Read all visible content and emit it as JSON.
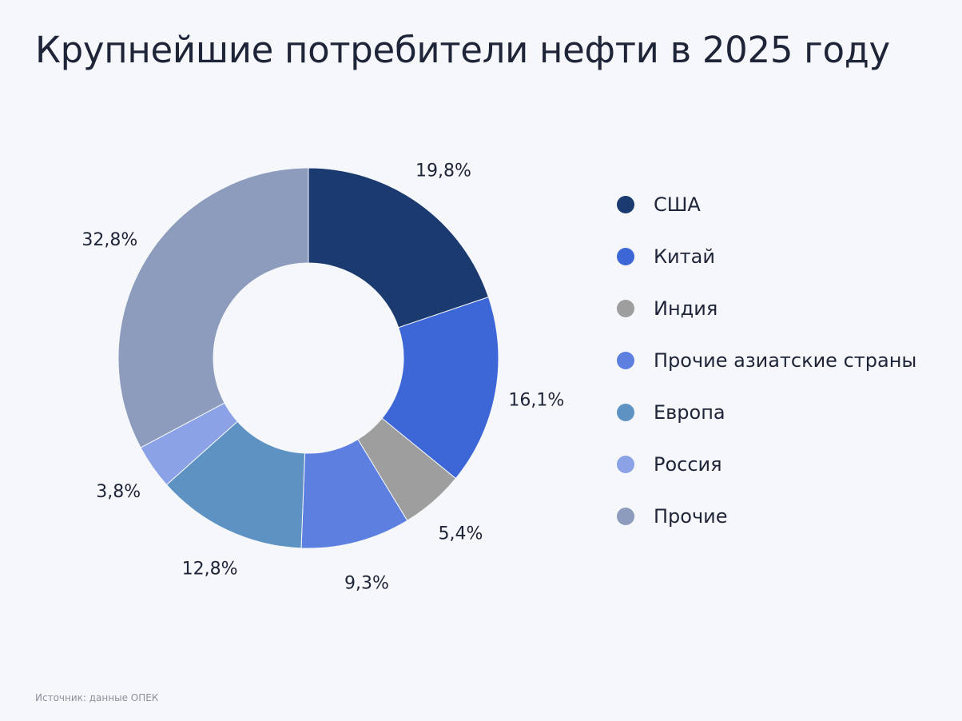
{
  "title": "Крупнейшие потребители нефти в 2025 году",
  "source": "Источник: данные ОПЕК",
  "chart_data": {
    "type": "pie",
    "donut": true,
    "title": "Крупнейшие потребители нефти в 2025 году",
    "unit": "%",
    "legend_position": "right",
    "slices": [
      {
        "name": "США",
        "value": 19.8,
        "label": "19,8%",
        "color": "#1b3a70"
      },
      {
        "name": "Китай",
        "value": 16.1,
        "label": "16,1%",
        "color": "#3d66d6"
      },
      {
        "name": "Индия",
        "value": 5.4,
        "label": "5,4%",
        "color": "#9e9e9e"
      },
      {
        "name": "Прочие азиатские страны",
        "value": 9.3,
        "label": "9,3%",
        "color": "#5c7fe0"
      },
      {
        "name": "Европа",
        "value": 12.8,
        "label": "12,8%",
        "color": "#5d92c2"
      },
      {
        "name": "Россия",
        "value": 3.8,
        "label": "3,8%",
        "color": "#8ba3e6"
      },
      {
        "name": "Прочие",
        "value": 32.8,
        "label": "32,8%",
        "color": "#8d9bbd"
      }
    ]
  }
}
